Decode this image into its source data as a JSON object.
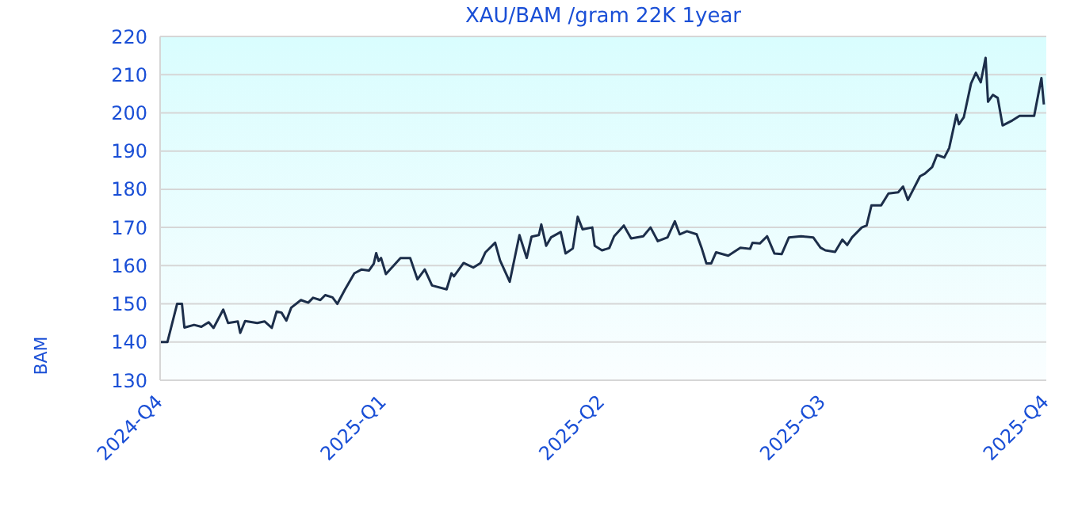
{
  "chart_data": {
    "type": "line",
    "title": "XAU/BAM /gram 22K 1year",
    "ylabel": "BAM",
    "x": [
      "2024-10-01",
      "2024-10-04",
      "2024-10-08",
      "2024-10-10",
      "2024-10-11",
      "2024-10-15",
      "2024-10-18",
      "2024-10-21",
      "2024-10-23",
      "2024-10-27",
      "2024-10-29",
      "2024-11-02",
      "2024-11-03",
      "2024-11-05",
      "2024-11-10",
      "2024-11-13",
      "2024-11-16",
      "2024-11-18",
      "2024-11-20",
      "2024-11-22",
      "2024-11-24",
      "2024-11-28",
      "2024-12-01",
      "2024-12-03",
      "2024-12-06",
      "2024-12-08",
      "2024-12-11",
      "2024-12-13",
      "2024-12-16",
      "2024-12-20",
      "2024-12-23",
      "2024-12-26",
      "2024-12-28",
      "2024-12-29",
      "2024-12-30",
      "2024-12-31",
      "2025-01-02",
      "2025-01-08",
      "2025-01-12",
      "2025-01-15",
      "2025-01-18",
      "2025-01-21",
      "2025-01-27",
      "2025-01-29",
      "2025-01-30",
      "2025-02-03",
      "2025-02-07",
      "2025-02-10",
      "2025-02-12",
      "2025-02-16",
      "2025-02-18",
      "2025-02-22",
      "2025-02-26",
      "2025-03-01",
      "2025-03-03",
      "2025-03-06",
      "2025-03-07",
      "2025-03-09",
      "2025-03-11",
      "2025-03-15",
      "2025-03-17",
      "2025-03-20",
      "2025-03-22",
      "2025-03-24",
      "2025-03-28",
      "2025-03-29",
      "2025-04-01",
      "2025-04-04",
      "2025-04-06",
      "2025-04-10",
      "2025-04-13",
      "2025-04-18",
      "2025-04-21",
      "2025-04-24",
      "2025-04-28",
      "2025-05-01",
      "2025-05-03",
      "2025-05-06",
      "2025-05-10",
      "2025-05-12",
      "2025-05-14",
      "2025-05-16",
      "2025-05-18",
      "2025-05-23",
      "2025-05-28",
      "2025-06-01",
      "2025-06-02",
      "2025-06-05",
      "2025-06-08",
      "2025-06-11",
      "2025-06-14",
      "2025-06-17",
      "2025-06-22",
      "2025-06-27",
      "2025-06-30",
      "2025-07-02",
      "2025-07-06",
      "2025-07-09",
      "2025-07-11",
      "2025-07-13",
      "2025-07-17",
      "2025-07-19",
      "2025-07-21",
      "2025-07-25",
      "2025-07-28",
      "2025-08-01",
      "2025-08-03",
      "2025-08-05",
      "2025-08-10",
      "2025-08-12",
      "2025-08-15",
      "2025-08-17",
      "2025-08-20",
      "2025-08-22",
      "2025-08-25",
      "2025-08-26",
      "2025-08-28",
      "2025-08-31",
      "2025-09-02",
      "2025-09-04",
      "2025-09-06",
      "2025-09-07",
      "2025-09-09",
      "2025-09-11",
      "2025-09-13",
      "2025-09-17",
      "2025-09-20",
      "2025-09-26",
      "2025-09-29",
      "2025-09-30"
    ],
    "series": [
      {
        "color": "#1c2e4a",
        "values": [
          140.0,
          140.0,
          150,
          150,
          143.8,
          144.5,
          144,
          145.2,
          143.7,
          148.5,
          145,
          145.4,
          142.4,
          145.5,
          145,
          145.4,
          143.7,
          148,
          147.7,
          145.6,
          149,
          151,
          150.3,
          151.6,
          151,
          152.3,
          151.7,
          150,
          153.6,
          158,
          159,
          158.7,
          160.5,
          163.3,
          161.2,
          162,
          157.8,
          162,
          162,
          156.4,
          159,
          154.8,
          153.8,
          158,
          157.2,
          160.7,
          159.5,
          160.7,
          163.5,
          166,
          161.4,
          155.8,
          168,
          162,
          167.6,
          168,
          170.8,
          165.2,
          167.4,
          168.8,
          163.2,
          164.5,
          172.8,
          169.5,
          170,
          165.2,
          164,
          164.6,
          167.7,
          170.5,
          167.1,
          167.7,
          170,
          166.4,
          167.4,
          171.6,
          168.2,
          169,
          168.2,
          164.7,
          160.6,
          160.6,
          163.5,
          162.6,
          164.7,
          164.4,
          166,
          165.8,
          167.7,
          163.2,
          163,
          167.4,
          167.7,
          167.4,
          164.7,
          164,
          163.6,
          166.8,
          165.4,
          167.4,
          170,
          170.5,
          175.8,
          175.8,
          178.9,
          179.2,
          180.7,
          177.2,
          183.4,
          184.1,
          185.8,
          189,
          188.3,
          190.8,
          199.5,
          197,
          198.8,
          207.7,
          210.5,
          208,
          214.4,
          202.9,
          204.7,
          203.9,
          196.7,
          198,
          199.2,
          199.2,
          209.1,
          202.2
        ]
      }
    ],
    "xlim": [
      "2024-10-01",
      "2025-10-01"
    ],
    "xticks": [
      {
        "value": "2024-10-01",
        "label": "2024-Q4"
      },
      {
        "value": "2025-01-01",
        "label": "2025-Q1"
      },
      {
        "value": "2025-04-01",
        "label": "2025-Q2"
      },
      {
        "value": "2025-07-01",
        "label": "2025-Q3"
      },
      {
        "value": "2025-10-01",
        "label": "2025-Q4"
      }
    ],
    "ylim": [
      130,
      220
    ],
    "yticks": [
      130,
      140,
      150,
      160,
      170,
      180,
      190,
      200,
      210,
      220
    ],
    "grid": "y"
  }
}
